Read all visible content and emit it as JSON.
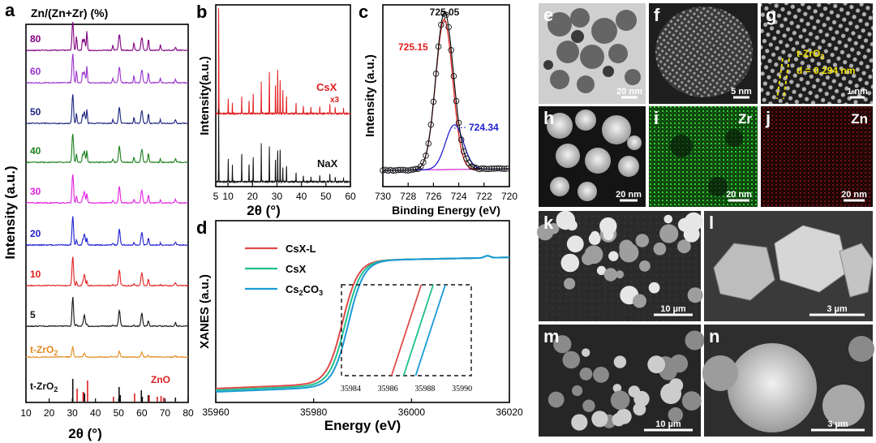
{
  "panel_letters": {
    "a": "a",
    "b": "b",
    "c": "c",
    "d": "d",
    "e": "e",
    "f": "f",
    "g": "g",
    "h": "h",
    "i": "i",
    "j": "j",
    "k": "k",
    "l": "l",
    "m": "m",
    "n": "n"
  },
  "chart_data": [
    {
      "id": "a",
      "type": "line",
      "title": "Zn/(Zn+Zr) (%)",
      "xlabel": "2θ (°)",
      "ylabel": "Intensity (a.u.)",
      "xlim": [
        10,
        80
      ],
      "xticks": [
        "10",
        "20",
        "30",
        "40",
        "50",
        "60",
        "70",
        "80"
      ],
      "series": [
        {
          "name": "80",
          "color": "#800080"
        },
        {
          "name": "60",
          "color": "#9932cc"
        },
        {
          "name": "50",
          "color": "#1a237e"
        },
        {
          "name": "40",
          "color": "#1b7f1b"
        },
        {
          "name": "30",
          "color": "#e020e0"
        },
        {
          "name": "20",
          "color": "#1f1fd0"
        },
        {
          "name": "10",
          "color": "#e02020"
        },
        {
          "name": "5",
          "color": "#111111"
        },
        {
          "name": "t-ZrO2",
          "color": "#e08a1e"
        }
      ],
      "reference": {
        "zro2_label": "t-ZrO2",
        "zro2_color": "#111111",
        "zno_label": "ZnO",
        "zno_color": "#e02020",
        "zro2_peaks": [
          30.2,
          34.8,
          35.3,
          50.2,
          50.7,
          59.8,
          60.2,
          62.8,
          74.5
        ],
        "zno_peaks": [
          31.8,
          34.4,
          36.3,
          47.5,
          56.6,
          62.9,
          66.4,
          68.0,
          69.1
        ]
      }
    },
    {
      "id": "b",
      "type": "line",
      "xlabel": "2θ (°)",
      "ylabel": "Intensity(a.u.)",
      "xlim": [
        5,
        60
      ],
      "xticks": [
        "5",
        "10",
        "20",
        "30",
        "40",
        "50",
        "60"
      ],
      "series": [
        {
          "name": "CsX",
          "note": "x3",
          "color": "#e02020"
        },
        {
          "name": "NaX",
          "color": "#111111"
        }
      ]
    },
    {
      "id": "c",
      "type": "line",
      "xlabel": "Binding Energy (eV)",
      "ylabel": "Intensity (a.u.)",
      "xlim": [
        730,
        720
      ],
      "xticks": [
        "730",
        "728",
        "726",
        "724",
        "722",
        "720"
      ],
      "peak_labels": [
        {
          "text": "725.05",
          "color": "#111111"
        },
        {
          "text": "725.15",
          "color": "#e02020"
        },
        {
          "text": "724.34",
          "color": "#2020d0"
        }
      ],
      "components": [
        {
          "name": "raw",
          "color": "#111111",
          "center": 725.05
        },
        {
          "name": "fit-1",
          "color": "#e02020",
          "center": 725.15
        },
        {
          "name": "fit-2",
          "color": "#2020d0",
          "center": 724.34
        },
        {
          "name": "background",
          "color": "#d020d0"
        }
      ]
    },
    {
      "id": "d",
      "type": "line",
      "xlabel": "Energy (eV)",
      "ylabel": "XANES (a.u.)",
      "xlim": [
        35960,
        36020
      ],
      "xticks": [
        "35960",
        "35980",
        "36000",
        "36020"
      ],
      "inset_xticks": [
        "35984",
        "35986",
        "35988",
        "35990"
      ],
      "series": [
        {
          "name": "CsX-L",
          "color": "#e04a4a",
          "shift": -0.6
        },
        {
          "name": "CsX",
          "color": "#1fbf8f",
          "shift": 0
        },
        {
          "name": "Cs2CO3",
          "color": "#1a9ad6",
          "shift": 0.6
        }
      ]
    }
  ],
  "legend_d_display": {
    "csxl": "CsX-L",
    "csx": "CsX",
    "cs2co3_main": "Cs",
    "cs2co3_sub": "2",
    "cs2co3_tail": "CO",
    "cs2co3_sub2": "3"
  },
  "microscopy": {
    "e": {
      "scale": "20 nm"
    },
    "f": {
      "scale": "5 nm"
    },
    "g": {
      "scale": "1 nm",
      "annotation_phase": "t-ZrO",
      "annotation_sub": "2",
      "annotation_d": "d = 0.294 nm"
    },
    "h": {
      "scale": "20 nm"
    },
    "i": {
      "scale": "20 nm",
      "element": "Zr",
      "color": "#1fa51f"
    },
    "j": {
      "scale": "20 nm",
      "element": "Zn",
      "color": "#d01a1a"
    },
    "k": {
      "scale": "10 µm"
    },
    "l": {
      "scale": "3 µm"
    },
    "m": {
      "scale": "10 µm"
    },
    "n": {
      "scale": "3 µm"
    }
  },
  "labels_a_ztzro2": {
    "main": "t-ZrO",
    "sub": "2"
  },
  "labels_a_ref": {
    "main": "t-ZrO",
    "sub": "2"
  }
}
